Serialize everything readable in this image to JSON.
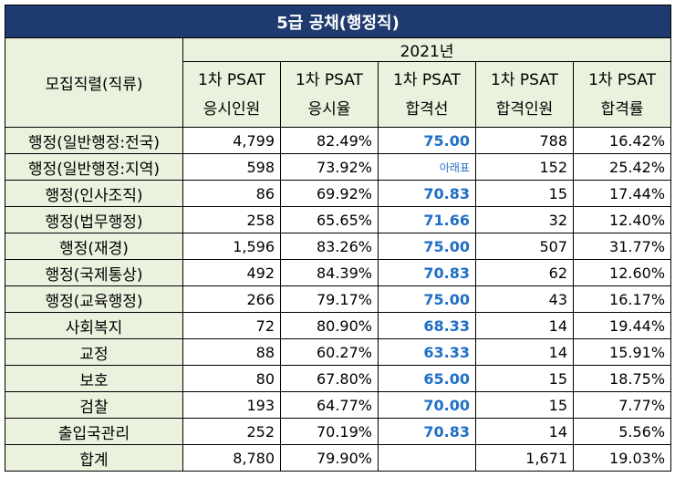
{
  "title": "5급 공채(행정직)",
  "year": "2021년",
  "columns": {
    "category": "모집직렬(직류)",
    "applicants_l1": "1차 PSAT",
    "applicants_l2": "응시인원",
    "rate_l1": "1차 PSAT",
    "rate_l2": "응시율",
    "cutoff_l1": "1차 PSAT",
    "cutoff_l2": "합격선",
    "passers_l1": "1차 PSAT",
    "passers_l2": "합격인원",
    "passrate_l1": "1차 PSAT",
    "passrate_l2": "합격률"
  },
  "rows": [
    {
      "name": "행정(일반행정:전국)",
      "applicants": "4,799",
      "rate": "82.49%",
      "cutoff": "75.00",
      "passers": "788",
      "passrate": "16.42%"
    },
    {
      "name": "행정(일반행정:지역)",
      "applicants": "598",
      "rate": "73.92%",
      "cutoff": "아래표",
      "passers": "152",
      "passrate": "25.42%"
    },
    {
      "name": "행정(인사조직)",
      "applicants": "86",
      "rate": "69.92%",
      "cutoff": "70.83",
      "passers": "15",
      "passrate": "17.44%"
    },
    {
      "name": "행정(법무행정)",
      "applicants": "258",
      "rate": "65.65%",
      "cutoff": "71.66",
      "passers": "32",
      "passrate": "12.40%"
    },
    {
      "name": "행정(재경)",
      "applicants": "1,596",
      "rate": "83.26%",
      "cutoff": "75.00",
      "passers": "507",
      "passrate": "31.77%"
    },
    {
      "name": "행정(국제통상)",
      "applicants": "492",
      "rate": "84.39%",
      "cutoff": "70.83",
      "passers": "62",
      "passrate": "12.60%"
    },
    {
      "name": "행정(교육행정)",
      "applicants": "266",
      "rate": "79.17%",
      "cutoff": "75.00",
      "passers": "43",
      "passrate": "16.17%"
    },
    {
      "name": "사회복지",
      "applicants": "72",
      "rate": "80.90%",
      "cutoff": "68.33",
      "passers": "14",
      "passrate": "19.44%"
    },
    {
      "name": "교정",
      "applicants": "88",
      "rate": "60.27%",
      "cutoff": "63.33",
      "passers": "14",
      "passrate": "15.91%"
    },
    {
      "name": "보호",
      "applicants": "80",
      "rate": "67.80%",
      "cutoff": "65.00",
      "passers": "15",
      "passrate": "18.75%"
    },
    {
      "name": "검찰",
      "applicants": "193",
      "rate": "64.77%",
      "cutoff": "70.00",
      "passers": "15",
      "passrate": "7.77%"
    },
    {
      "name": "출입국관리",
      "applicants": "252",
      "rate": "70.19%",
      "cutoff": "70.83",
      "passers": "14",
      "passrate": "5.56%"
    },
    {
      "name": "합계",
      "applicants": "8,780",
      "rate": "79.90%",
      "cutoff": "",
      "passers": "1,671",
      "passrate": "19.03%"
    }
  ],
  "colors": {
    "title_bg": "#1f3a6e",
    "header_bg": "#eaf1dd",
    "cutoff_text": "#1f6fc5"
  }
}
